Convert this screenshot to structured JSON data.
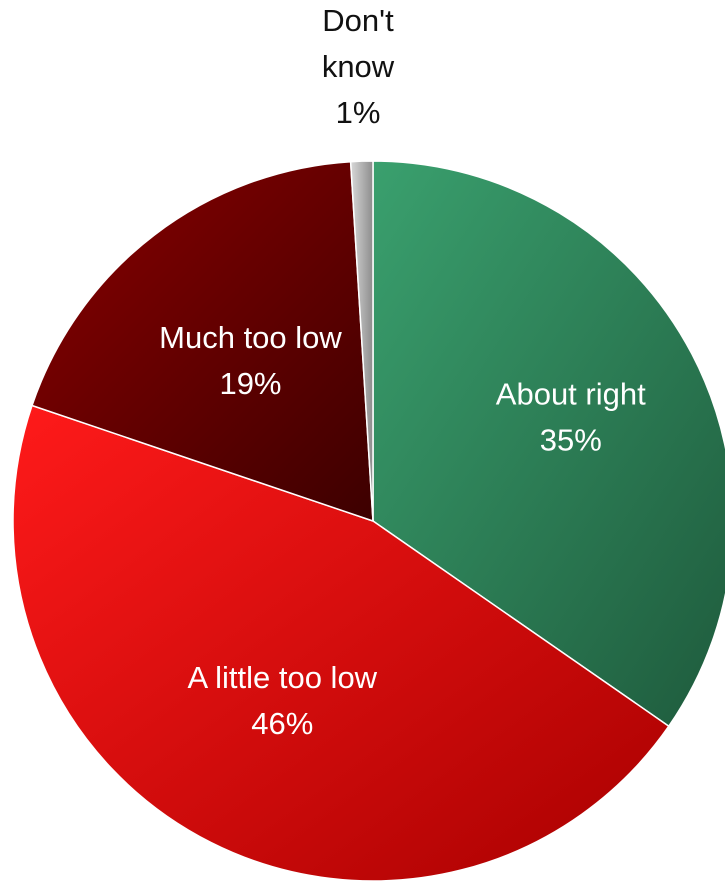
{
  "chart_data": {
    "type": "pie",
    "slices": [
      {
        "category": "About right",
        "label_lines": [
          "About right",
          "35%"
        ],
        "value": 35,
        "color": "#2f8a5e",
        "label_position": "inside"
      },
      {
        "category": "A little too low",
        "label_lines": [
          "A little too low",
          "46%"
        ],
        "value": 46,
        "color": "#e00000",
        "label_position": "inside"
      },
      {
        "category": "Much too low",
        "label_lines": [
          "Much too low",
          "19%"
        ],
        "value": 19,
        "color": "#6a0000",
        "label_position": "inside"
      },
      {
        "category": "Don't know",
        "label_lines": [
          "Don't",
          "know",
          "1%"
        ],
        "value": 1,
        "color": "#b8b8b8",
        "label_position": "outside"
      }
    ],
    "start": "12 o'clock",
    "direction": "clockwise",
    "legend": "none"
  }
}
